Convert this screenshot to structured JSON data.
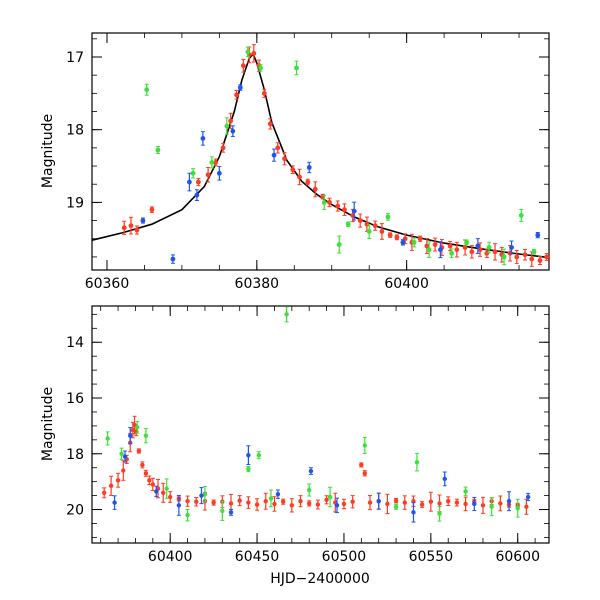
{
  "figure": {
    "xlabel": "HJD−2400000"
  },
  "colors": {
    "red": "#ff3b22",
    "green": "#3ee03a",
    "blue": "#1f55ee",
    "model": "#000000"
  },
  "chart_data": [
    {
      "type": "scatter",
      "title": "",
      "xlabel": "",
      "ylabel": "Magnitude",
      "xlim": [
        60358,
        60419
      ],
      "ylim": [
        19.93,
        16.67
      ],
      "y_inverted": true,
      "xticks": [
        60360,
        60380,
        60400
      ],
      "yticks": [
        17,
        18,
        19
      ],
      "model_curve": {
        "x": [
          60358,
          60362,
          60366,
          60370,
          60373,
          60375,
          60377,
          60378,
          60379,
          60379.5,
          60380,
          60381,
          60382,
          60384,
          60386,
          60388,
          60390,
          60393,
          60396,
          60400,
          60405,
          60410,
          60415,
          60419
        ],
        "y": [
          19.52,
          19.42,
          19.3,
          19.1,
          18.78,
          18.37,
          17.75,
          17.32,
          17.02,
          16.96,
          17.08,
          17.45,
          17.9,
          18.42,
          18.71,
          18.89,
          19.03,
          19.2,
          19.33,
          19.45,
          19.56,
          19.64,
          19.71,
          19.76
        ]
      },
      "series": [
        {
          "name": "",
          "color": "red",
          "points": [
            [
              60362.3,
              19.35
            ],
            [
              60363.2,
              19.32
            ],
            [
              60364.0,
              19.38
            ],
            [
              60366.0,
              19.1
            ],
            [
              60372.2,
              18.72
            ],
            [
              60373.5,
              18.62
            ],
            [
              60374.5,
              18.45
            ],
            [
              60375.5,
              18.25
            ],
            [
              60376.5,
              17.88
            ],
            [
              60377.3,
              17.52
            ],
            [
              60378.2,
              17.12
            ],
            [
              60379.0,
              16.97
            ],
            [
              60379.6,
              16.95
            ],
            [
              60380.3,
              17.12
            ],
            [
              60381.0,
              17.5
            ],
            [
              60381.8,
              17.92
            ],
            [
              60382.8,
              18.25
            ],
            [
              60383.7,
              18.4
            ],
            [
              60384.8,
              18.55
            ],
            [
              60385.7,
              18.65
            ],
            [
              60386.8,
              18.72
            ],
            [
              60387.8,
              18.82
            ],
            [
              60388.8,
              18.92
            ],
            [
              60389.7,
              19.0
            ],
            [
              60390.8,
              19.05
            ],
            [
              60391.7,
              19.1
            ],
            [
              60392.8,
              19.18
            ],
            [
              60393.8,
              19.25
            ],
            [
              60394.7,
              19.3
            ],
            [
              60395.8,
              19.32
            ],
            [
              60396.7,
              19.4
            ],
            [
              60397.8,
              19.45
            ],
            [
              60398.7,
              19.48
            ],
            [
              60399.8,
              19.5
            ],
            [
              60400.7,
              19.55
            ],
            [
              60401.8,
              19.5
            ],
            [
              60402.7,
              19.6
            ],
            [
              60403.8,
              19.58
            ],
            [
              60404.7,
              19.62
            ],
            [
              60405.8,
              19.6
            ],
            [
              60406.7,
              19.65
            ],
            [
              60407.8,
              19.62
            ],
            [
              60408.7,
              19.68
            ],
            [
              60409.8,
              19.65
            ],
            [
              60410.7,
              19.7
            ],
            [
              60411.8,
              19.68
            ],
            [
              60412.7,
              19.72
            ],
            [
              60413.8,
              19.7
            ],
            [
              60414.7,
              19.75
            ],
            [
              60415.8,
              19.72
            ],
            [
              60416.7,
              19.78
            ],
            [
              60417.8,
              19.8
            ],
            [
              60418.7,
              19.75
            ]
          ]
        },
        {
          "name": "",
          "color": "green",
          "points": [
            [
              60365.3,
              17.45
            ],
            [
              60366.8,
              18.28
            ],
            [
              60371.5,
              18.6
            ],
            [
              60374.0,
              18.45
            ],
            [
              60376.0,
              17.95
            ],
            [
              60378.8,
              16.93
            ],
            [
              60380.5,
              17.15
            ],
            [
              60385.3,
              17.15
            ],
            [
              60389.0,
              19.0
            ],
            [
              60391.0,
              19.58
            ],
            [
              60392.2,
              19.3
            ],
            [
              60395.0,
              19.4
            ],
            [
              60397.5,
              19.2
            ],
            [
              60401.0,
              19.55
            ],
            [
              60403.0,
              19.65
            ],
            [
              60406.0,
              19.7
            ],
            [
              60408.0,
              19.55
            ],
            [
              60411.0,
              19.62
            ],
            [
              60413.0,
              19.75
            ],
            [
              60415.3,
              19.18
            ],
            [
              60417.0,
              19.68
            ]
          ]
        },
        {
          "name": "",
          "color": "blue",
          "points": [
            [
              60364.8,
              19.25
            ],
            [
              60368.8,
              19.78
            ],
            [
              60371.0,
              18.72
            ],
            [
              60372.0,
              18.9
            ],
            [
              60372.8,
              18.12
            ],
            [
              60375.0,
              18.6
            ],
            [
              60376.8,
              18.02
            ],
            [
              60377.8,
              17.42
            ],
            [
              60382.3,
              18.35
            ],
            [
              60387.0,
              18.52
            ],
            [
              60393.0,
              19.12
            ],
            [
              60399.5,
              19.55
            ],
            [
              60404.5,
              19.65
            ],
            [
              60409.5,
              19.6
            ],
            [
              60414.0,
              19.62
            ],
            [
              60417.5,
              19.45
            ]
          ]
        }
      ],
      "legend": "none"
    },
    {
      "type": "scatter",
      "title": "",
      "xlabel": "HJD−2400000",
      "ylabel": "Magnitude",
      "xlim": [
        60355,
        60618
      ],
      "ylim": [
        21.2,
        12.7
      ],
      "y_inverted": true,
      "xticks": [
        60400,
        60450,
        60500,
        60550,
        60600
      ],
      "yticks": [
        14,
        16,
        18,
        20
      ],
      "series": [
        {
          "name": "",
          "color": "red",
          "points": [
            [
              60362,
              19.4
            ],
            [
              60366,
              19.15
            ],
            [
              60370,
              18.95
            ],
            [
              60373,
              18.6
            ],
            [
              60375,
              18.2
            ],
            [
              60377,
              17.6
            ],
            [
              60378.5,
              17.15
            ],
            [
              60379.5,
              16.97
            ],
            [
              60380.5,
              17.2
            ],
            [
              60382,
              17.9
            ],
            [
              60384,
              18.4
            ],
            [
              60386,
              18.7
            ],
            [
              60388,
              18.95
            ],
            [
              60390,
              19.1
            ],
            [
              60393,
              19.25
            ],
            [
              60396,
              19.4
            ],
            [
              60400,
              19.55
            ],
            [
              60405,
              19.62
            ],
            [
              60410,
              19.7
            ],
            [
              60415,
              19.72
            ],
            [
              60420,
              19.7
            ],
            [
              60425,
              19.75
            ],
            [
              60430,
              19.72
            ],
            [
              60435,
              19.78
            ],
            [
              60440,
              19.68
            ],
            [
              60445,
              19.75
            ],
            [
              60450,
              19.82
            ],
            [
              60455,
              19.7
            ],
            [
              60460,
              19.8
            ],
            [
              60465,
              19.72
            ],
            [
              60470,
              19.85
            ],
            [
              60475,
              19.7
            ],
            [
              60480,
              19.78
            ],
            [
              60485,
              19.82
            ],
            [
              60490,
              19.65
            ],
            [
              60495,
              19.75
            ],
            [
              60500,
              19.8
            ],
            [
              60505,
              19.72
            ],
            [
              60510,
              18.4
            ],
            [
              60512,
              18.7
            ],
            [
              60515,
              19.75
            ],
            [
              60520,
              19.7
            ],
            [
              60525,
              19.8
            ],
            [
              60530,
              19.68
            ],
            [
              60535,
              19.75
            ],
            [
              60540,
              19.7
            ],
            [
              60545,
              19.82
            ],
            [
              60550,
              19.72
            ],
            [
              60555,
              19.78
            ],
            [
              60560,
              19.7
            ],
            [
              60565,
              19.75
            ],
            [
              60570,
              19.8
            ],
            [
              60575,
              19.72
            ],
            [
              60580,
              19.85
            ],
            [
              60585,
              19.7
            ],
            [
              60590,
              19.78
            ],
            [
              60595,
              19.82
            ],
            [
              60600,
              19.85
            ],
            [
              60605,
              19.9
            ]
          ]
        },
        {
          "name": "",
          "color": "green",
          "points": [
            [
              60364,
              17.45
            ],
            [
              60372,
              18.0
            ],
            [
              60381,
              17.05
            ],
            [
              60386,
              17.35
            ],
            [
              60398,
              19.25
            ],
            [
              60410,
              20.2
            ],
            [
              60420,
              19.45
            ],
            [
              60430,
              20.05
            ],
            [
              60445,
              18.55
            ],
            [
              60451,
              18.05
            ],
            [
              60458,
              19.6
            ],
            [
              60467,
              13.0
            ],
            [
              60480,
              19.3
            ],
            [
              60492,
              19.55
            ],
            [
              60512,
              17.7
            ],
            [
              60530,
              19.9
            ],
            [
              60542,
              18.3
            ],
            [
              60555,
              20.15
            ],
            [
              60570,
              19.35
            ],
            [
              60585,
              19.9
            ],
            [
              60600,
              19.95
            ]
          ]
        },
        {
          "name": "",
          "color": "blue",
          "points": [
            [
              60368,
              19.75
            ],
            [
              60374,
              18.1
            ],
            [
              60377,
              17.35
            ],
            [
              60392,
              19.35
            ],
            [
              60405,
              19.85
            ],
            [
              60418,
              19.5
            ],
            [
              60435,
              20.1
            ],
            [
              60445,
              18.05
            ],
            [
              60462,
              19.45
            ],
            [
              60481,
              18.62
            ],
            [
              60496,
              19.85
            ],
            [
              60520,
              19.7
            ],
            [
              60540,
              20.1
            ],
            [
              60558,
              18.9
            ],
            [
              60575,
              19.8
            ],
            [
              60595,
              19.7
            ],
            [
              60606,
              19.55
            ]
          ]
        }
      ],
      "legend": "none"
    }
  ]
}
